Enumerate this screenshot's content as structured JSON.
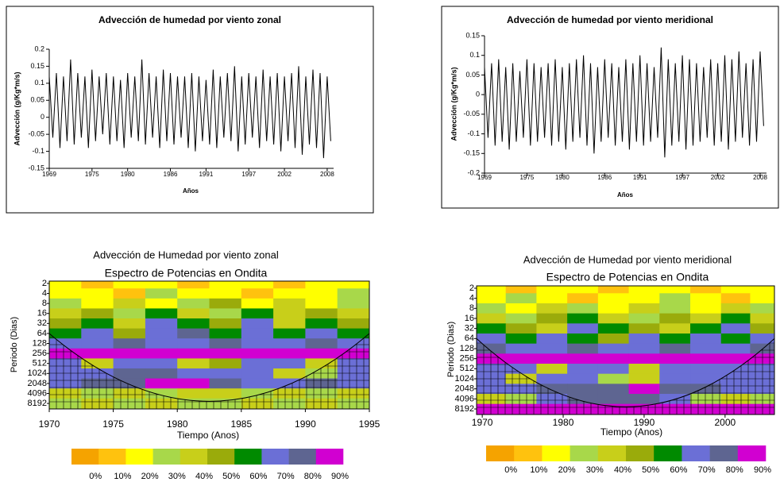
{
  "chart_data": [
    {
      "type": "line",
      "title": "Advección de humedad por viento zonal",
      "y_label": "Advección (g/Kg*m/s)",
      "x_label": "Años",
      "color": "#000000",
      "xlim": [
        1969,
        2008.9
      ],
      "xticks": [
        1969,
        1975,
        1980,
        1986,
        1991,
        1997,
        2002,
        2008
      ],
      "ylim": [
        -0.15,
        0.2
      ],
      "yticks": [
        -0.15,
        -0.1,
        -0.05,
        0,
        0.05,
        0.1,
        0.15,
        0.2
      ],
      "x": [
        1969,
        1969.5,
        1970,
        1970.5,
        1971,
        1971.5,
        1972,
        1972.5,
        1973,
        1973.5,
        1974,
        1974.5,
        1975,
        1975.5,
        1976,
        1976.5,
        1977,
        1977.5,
        1978,
        1978.5,
        1979,
        1979.5,
        1980,
        1980.5,
        1981,
        1981.5,
        1982,
        1982.5,
        1983,
        1983.5,
        1984,
        1984.5,
        1985,
        1985.5,
        1986,
        1986.5,
        1987,
        1987.5,
        1988,
        1988.5,
        1989,
        1989.5,
        1990,
        1990.5,
        1991,
        1991.5,
        1992,
        1992.5,
        1993,
        1993.5,
        1994,
        1994.5,
        1995,
        1995.5,
        1996,
        1996.5,
        1997,
        1997.5,
        1998,
        1998.5,
        1999,
        1999.5,
        2000,
        2000.5,
        2001,
        2001.5,
        2002,
        2002.5,
        2003,
        2003.5,
        2004,
        2004.5,
        2005,
        2005.5,
        2006,
        2006.5,
        2007,
        2007.5,
        2008,
        2008.5
      ],
      "values": [
        0.12,
        -0.06,
        0.13,
        -0.09,
        0.12,
        -0.07,
        0.17,
        -0.08,
        0.13,
        -0.06,
        0.12,
        -0.09,
        0.14,
        -0.07,
        0.12,
        -0.05,
        0.13,
        -0.08,
        0.12,
        -0.07,
        0.11,
        -0.09,
        0.13,
        -0.06,
        0.12,
        -0.07,
        0.17,
        -0.08,
        0.13,
        -0.06,
        0.12,
        -0.09,
        0.14,
        -0.07,
        0.13,
        -0.08,
        0.12,
        -0.06,
        0.12,
        -0.09,
        0.13,
        -0.1,
        0.12,
        -0.07,
        0.11,
        -0.08,
        0.14,
        -0.09,
        0.12,
        -0.06,
        0.13,
        -0.07,
        0.15,
        -0.1,
        0.12,
        -0.08,
        0.13,
        -0.06,
        0.12,
        -0.09,
        0.14,
        -0.07,
        0.12,
        -0.08,
        0.13,
        -0.1,
        0.12,
        -0.07,
        0.13,
        -0.09,
        0.15,
        -0.11,
        0.12,
        -0.08,
        0.14,
        -0.09,
        0.13,
        -0.12,
        0.12,
        -0.07
      ]
    },
    {
      "type": "line",
      "title": "Advección de humedad por viento meridional",
      "y_label": "Advección (g/Kg*m/s)",
      "x_label": "Años",
      "color": "#000000",
      "xlim": [
        1969,
        2008.9
      ],
      "xticks": [
        1969,
        1975,
        1980,
        1986,
        1991,
        1997,
        2002,
        2008
      ],
      "ylim": [
        -0.2,
        0.15
      ],
      "yticks": [
        -0.2,
        -0.15,
        -0.1,
        -0.05,
        0,
        0.05,
        0.1,
        0.15
      ],
      "x": [
        1969,
        1969.5,
        1970,
        1970.5,
        1971,
        1971.5,
        1972,
        1972.5,
        1973,
        1973.5,
        1974,
        1974.5,
        1975,
        1975.5,
        1976,
        1976.5,
        1977,
        1977.5,
        1978,
        1978.5,
        1979,
        1979.5,
        1980,
        1980.5,
        1981,
        1981.5,
        1982,
        1982.5,
        1983,
        1983.5,
        1984,
        1984.5,
        1985,
        1985.5,
        1986,
        1986.5,
        1987,
        1987.5,
        1988,
        1988.5,
        1989,
        1989.5,
        1990,
        1990.5,
        1991,
        1991.5,
        1992,
        1992.5,
        1993,
        1993.5,
        1994,
        1994.5,
        1995,
        1995.5,
        1996,
        1996.5,
        1997,
        1997.5,
        1998,
        1998.5,
        1999,
        1999.5,
        2000,
        2000.5,
        2001,
        2001.5,
        2002,
        2002.5,
        2003,
        2003.5,
        2004,
        2004.5,
        2005,
        2005.5,
        2006,
        2006.5,
        2007,
        2007.5,
        2008,
        2008.5
      ],
      "values": [
        0.07,
        -0.11,
        0.08,
        -0.13,
        0.09,
        -0.12,
        0.07,
        -0.14,
        0.08,
        -0.12,
        0.06,
        -0.11,
        0.09,
        -0.13,
        0.08,
        -0.12,
        0.07,
        -0.11,
        0.08,
        -0.13,
        0.09,
        -0.12,
        0.07,
        -0.14,
        0.08,
        -0.12,
        0.09,
        -0.11,
        0.1,
        -0.13,
        0.08,
        -0.15,
        0.07,
        -0.12,
        0.09,
        -0.11,
        0.08,
        -0.13,
        0.07,
        -0.12,
        0.09,
        -0.14,
        0.08,
        -0.12,
        0.1,
        -0.13,
        0.08,
        -0.12,
        0.07,
        -0.11,
        0.12,
        -0.16,
        0.09,
        -0.13,
        0.08,
        -0.12,
        0.1,
        -0.14,
        0.09,
        -0.13,
        0.08,
        -0.12,
        0.07,
        -0.11,
        0.09,
        -0.13,
        0.08,
        -0.12,
        0.1,
        -0.14,
        0.09,
        -0.12,
        0.11,
        -0.11,
        0.08,
        -0.13,
        0.09,
        -0.12,
        0.11,
        -0.08
      ]
    },
    {
      "type": "heatmap",
      "title": "Advección de Humedad por viento zonal",
      "subtitle": "Espectro de Potencias en Ondita",
      "y_label": "Periodo (Dias)",
      "x_label": "Tiempo (Anos)",
      "xlim": [
        1970,
        1995
      ],
      "xticks": [
        1970,
        1975,
        1980,
        1985,
        1990,
        1995
      ],
      "ylog": true,
      "y_inverted": true,
      "ylim": [
        1.7,
        12000
      ],
      "yticks": [
        2,
        4,
        8,
        16,
        32,
        64,
        128,
        256,
        512,
        1024,
        2048,
        4096,
        8192
      ],
      "x": [
        1971.25,
        1973.75,
        1976.25,
        1978.75,
        1981.25,
        1983.75,
        1986.25,
        1988.75,
        1991.25,
        1993.75
      ],
      "y": [
        2,
        4,
        8,
        16,
        32,
        64,
        128,
        256,
        512,
        1024,
        2048,
        4096,
        8192
      ],
      "values": [
        [
          20,
          10,
          20,
          20,
          10,
          20,
          20,
          10,
          20,
          20
        ],
        [
          20,
          20,
          10,
          30,
          20,
          20,
          10,
          20,
          20,
          30
        ],
        [
          30,
          20,
          40,
          20,
          30,
          50,
          20,
          40,
          20,
          30
        ],
        [
          40,
          50,
          30,
          60,
          40,
          30,
          60,
          40,
          50,
          40
        ],
        [
          50,
          60,
          40,
          70,
          60,
          50,
          70,
          40,
          60,
          50
        ],
        [
          60,
          70,
          50,
          70,
          80,
          60,
          70,
          60,
          70,
          60
        ],
        [
          70,
          70,
          80,
          70,
          70,
          80,
          70,
          70,
          80,
          70
        ],
        [
          90,
          90,
          90,
          90,
          90,
          90,
          90,
          90,
          90,
          90
        ],
        [
          70,
          40,
          70,
          70,
          40,
          50,
          70,
          70,
          40,
          70
        ],
        [
          70,
          70,
          80,
          80,
          70,
          70,
          70,
          40,
          30,
          70
        ],
        [
          70,
          80,
          80,
          90,
          90,
          80,
          70,
          70,
          80,
          70
        ],
        [
          40,
          30,
          40,
          30,
          40,
          40,
          30,
          40,
          30,
          40
        ],
        [
          30,
          40,
          30,
          40,
          30,
          30,
          40,
          30,
          40,
          30
        ]
      ],
      "levels": [
        {
          "value": 0,
          "label": "0%"
        },
        {
          "value": 10,
          "label": "10%"
        },
        {
          "value": 20,
          "label": "20%"
        },
        {
          "value": 30,
          "label": "30%"
        },
        {
          "value": 40,
          "label": "40%"
        },
        {
          "value": 50,
          "label": "50%"
        },
        {
          "value": 60,
          "label": "60%"
        },
        {
          "value": 70,
          "label": "70%"
        },
        {
          "value": 80,
          "label": "80%"
        },
        {
          "value": 90,
          "label": "90%"
        }
      ],
      "colors": [
        "#f5a300",
        "#ffc20e",
        "#ffff00",
        "#a8d84a",
        "#c8cf1a",
        "#9aab0b",
        "#008a00",
        "#6b6fd6",
        "#5e6591",
        "#d100d1"
      ]
    },
    {
      "type": "heatmap",
      "title": "Advección de Humedad por viento meridional",
      "subtitle": "Espectro de Potencias en Ondita",
      "y_label": "Periodo (Dias)",
      "x_label": "Tiempo (Anos)",
      "xlim": [
        1969.3,
        2006.1
      ],
      "xticks": [
        1970,
        1980,
        1990,
        2000
      ],
      "ylog": true,
      "y_inverted": true,
      "ylim": [
        1.7,
        12000
      ],
      "yticks": [
        2,
        4,
        8,
        16,
        32,
        64,
        128,
        256,
        512,
        1024,
        2048,
        4096,
        8192
      ],
      "x": [
        1971,
        1974.8,
        1978.6,
        1982.4,
        1986.2,
        1990,
        1993.8,
        1997.6,
        2001.4,
        2004.8
      ],
      "y": [
        2,
        4,
        8,
        16,
        32,
        64,
        128,
        256,
        512,
        1024,
        2048,
        4096,
        8192
      ],
      "values": [
        [
          20,
          10,
          20,
          20,
          10,
          20,
          20,
          10,
          20,
          20
        ],
        [
          20,
          30,
          20,
          10,
          20,
          20,
          30,
          20,
          10,
          20
        ],
        [
          30,
          20,
          40,
          30,
          20,
          40,
          30,
          20,
          40,
          30
        ],
        [
          40,
          30,
          50,
          60,
          40,
          30,
          50,
          40,
          60,
          40
        ],
        [
          60,
          50,
          40,
          70,
          60,
          50,
          40,
          60,
          70,
          50
        ],
        [
          70,
          60,
          70,
          60,
          50,
          70,
          60,
          70,
          60,
          70
        ],
        [
          80,
          70,
          70,
          80,
          70,
          70,
          80,
          70,
          70,
          80
        ],
        [
          90,
          90,
          90,
          90,
          90,
          90,
          90,
          90,
          90,
          90
        ],
        [
          70,
          70,
          40,
          70,
          70,
          40,
          70,
          70,
          70,
          70
        ],
        [
          70,
          40,
          70,
          70,
          30,
          40,
          70,
          70,
          70,
          70
        ],
        [
          70,
          70,
          80,
          80,
          80,
          90,
          80,
          80,
          70,
          70
        ],
        [
          40,
          30,
          70,
          80,
          80,
          80,
          70,
          30,
          40,
          30
        ],
        [
          90,
          90,
          90,
          90,
          90,
          90,
          90,
          90,
          90,
          90
        ]
      ],
      "levels": [
        {
          "value": 0,
          "label": "0%"
        },
        {
          "value": 10,
          "label": "10%"
        },
        {
          "value": 20,
          "label": "20%"
        },
        {
          "value": 30,
          "label": "30%"
        },
        {
          "value": 40,
          "label": "40%"
        },
        {
          "value": 50,
          "label": "50%"
        },
        {
          "value": 60,
          "label": "60%"
        },
        {
          "value": 70,
          "label": "70%"
        },
        {
          "value": 80,
          "label": "80%"
        },
        {
          "value": 90,
          "label": "90%"
        }
      ],
      "colors": [
        "#f5a300",
        "#ffc20e",
        "#ffff00",
        "#a8d84a",
        "#c8cf1a",
        "#9aab0b",
        "#008a00",
        "#6b6fd6",
        "#5e6591",
        "#d100d1"
      ]
    }
  ]
}
